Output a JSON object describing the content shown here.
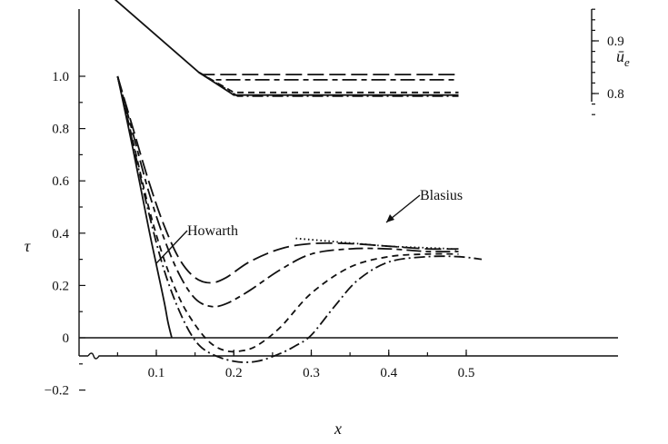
{
  "chart_data": [
    {
      "type": "line",
      "title": "",
      "xlabel": "x",
      "ylabel": "τ",
      "xlim": [
        0.03,
        0.53
      ],
      "ylim": [
        -0.2,
        1.1
      ],
      "x_ticks": [
        "0.1",
        "0.2",
        "0.3",
        "0.4",
        "0.5"
      ],
      "x_tick_values": [
        0.1,
        0.2,
        0.3,
        0.4,
        0.5
      ],
      "y_ticks": [
        "1.0",
        "0.8",
        "0.6",
        "0.4",
        "0.2",
        "0",
        "−0.2"
      ],
      "y_tick_values": [
        1.0,
        0.8,
        0.6,
        0.4,
        0.2,
        0.0,
        -0.2
      ],
      "grid": false,
      "annotations": [
        {
          "text": "Howarth",
          "target": {
            "x": 0.1,
            "y": 0.14
          }
        },
        {
          "text": "Blasius",
          "target": {
            "x": 0.28,
            "y": 0.37
          }
        }
      ],
      "series": [
        {
          "style": "long-dash",
          "x": [
            0.05,
            0.07,
            0.09,
            0.11,
            0.13,
            0.15,
            0.17,
            0.19,
            0.22,
            0.26,
            0.3,
            0.35,
            0.4,
            0.45,
            0.49
          ],
          "y": [
            1.0,
            0.8,
            0.6,
            0.43,
            0.3,
            0.23,
            0.21,
            0.23,
            0.29,
            0.34,
            0.36,
            0.36,
            0.35,
            0.34,
            0.34
          ]
        },
        {
          "style": "long-short-dash",
          "x": [
            0.05,
            0.07,
            0.09,
            0.11,
            0.13,
            0.15,
            0.17,
            0.19,
            0.22,
            0.26,
            0.3,
            0.35,
            0.4,
            0.45,
            0.49
          ],
          "y": [
            1.0,
            0.78,
            0.56,
            0.38,
            0.24,
            0.15,
            0.12,
            0.13,
            0.18,
            0.26,
            0.32,
            0.34,
            0.34,
            0.33,
            0.33
          ]
        },
        {
          "style": "short-dash",
          "x": [
            0.05,
            0.07,
            0.09,
            0.11,
            0.13,
            0.15,
            0.17,
            0.19,
            0.21,
            0.23,
            0.26,
            0.3,
            0.35,
            0.4,
            0.45,
            0.49
          ],
          "y": [
            1.0,
            0.75,
            0.5,
            0.3,
            0.15,
            0.05,
            -0.02,
            -0.05,
            -0.05,
            -0.03,
            0.04,
            0.17,
            0.27,
            0.31,
            0.32,
            0.32
          ]
        },
        {
          "style": "dash-dot",
          "x": [
            0.05,
            0.07,
            0.09,
            0.11,
            0.13,
            0.15,
            0.17,
            0.2,
            0.23,
            0.26,
            0.28,
            0.3,
            0.33,
            0.36,
            0.4,
            0.45,
            0.49,
            0.52
          ],
          "y": [
            1.0,
            0.74,
            0.48,
            0.26,
            0.1,
            -0.01,
            -0.06,
            -0.09,
            -0.09,
            -0.06,
            -0.03,
            0.01,
            0.12,
            0.22,
            0.29,
            0.31,
            0.31,
            0.3
          ]
        },
        {
          "style": "solid",
          "x": [
            0.05,
            0.07,
            0.09,
            0.1,
            0.11,
            0.115,
            0.12
          ],
          "y": [
            1.0,
            0.72,
            0.42,
            0.28,
            0.14,
            0.06,
            0.0
          ]
        },
        {
          "style": "dotted",
          "x": [
            0.28,
            0.32,
            0.36,
            0.4,
            0.44,
            0.48,
            0.49
          ],
          "y": [
            0.38,
            0.37,
            0.36,
            0.35,
            0.345,
            0.34,
            0.335
          ]
        }
      ]
    },
    {
      "type": "line",
      "title": "",
      "xlabel": "",
      "ylabel": "ū",
      "ylabel_subscript": "e",
      "y_axis_side": "right",
      "xlim": [
        0.03,
        0.53
      ],
      "ylim": [
        0.75,
        1.0
      ],
      "y_ticks": [
        "0.9",
        "0.8"
      ],
      "y_tick_values": [
        0.9,
        0.8
      ],
      "series": [
        {
          "style": "solid",
          "x": [
            0.03,
            0.155
          ],
          "y": [
            1.0,
            0.84
          ]
        },
        {
          "style": "long-dash",
          "x": [
            0.155,
            0.16,
            0.49
          ],
          "y": [
            0.84,
            0.836,
            0.836
          ]
        },
        {
          "style": "long-short-dash",
          "x": [
            0.155,
            0.17,
            0.49
          ],
          "y": [
            0.84,
            0.826,
            0.826
          ]
        },
        {
          "style": "short-dash",
          "x": [
            0.155,
            0.2,
            0.49
          ],
          "y": [
            0.84,
            0.802,
            0.802
          ]
        },
        {
          "style": "dash-dot",
          "x": [
            0.155,
            0.205,
            0.49
          ],
          "y": [
            0.84,
            0.795,
            0.795
          ]
        },
        {
          "style": "solid",
          "x": [
            0.155,
            0.2,
            0.49
          ],
          "y": [
            0.84,
            0.797,
            0.797
          ]
        }
      ]
    }
  ]
}
